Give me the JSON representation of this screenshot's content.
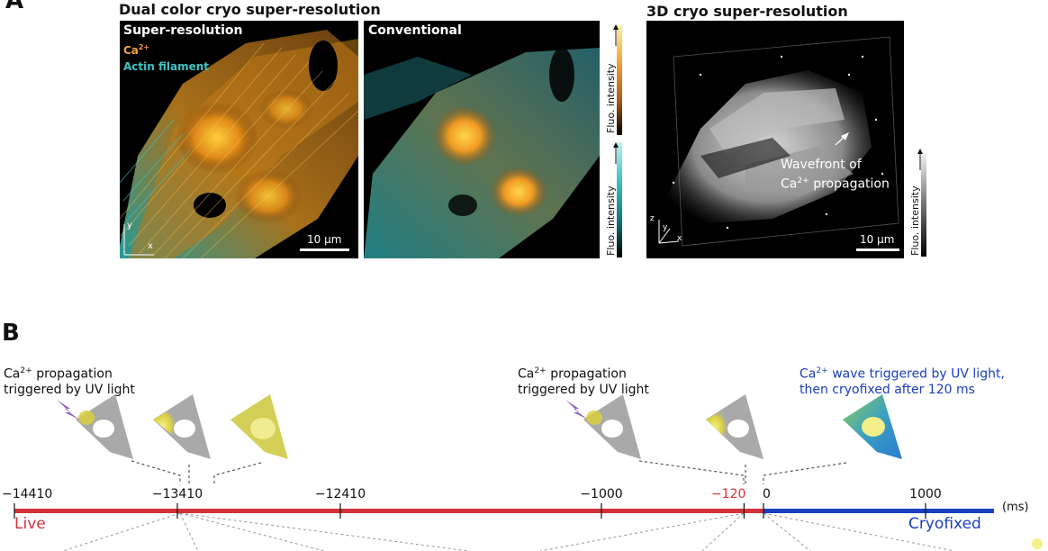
{
  "panel_a": {
    "letter": "A",
    "dual_title": "Dual color cryo super-resolution",
    "sr_label": "Super-resolution",
    "legend_ca": "Ca",
    "legend_ca_sup": "2+",
    "legend_actin": "Actin filament",
    "conventional_label": "Conventional",
    "scale_left": "10 μm",
    "axis_y": "y",
    "axis_x": "x",
    "axis_z": "z",
    "cbar_orange": "Fluo. intensity",
    "cbar_cyan": "Fluo. intensity",
    "threed_title": "3D cryo super-resolution",
    "wavefront_line1": "Wavefront of",
    "wavefront_ca": "Ca",
    "wavefront_ca_sup": "2+",
    "wavefront_line2_rest": " propagation",
    "scale_3d": "10 μm",
    "cbar_gray": "Fluo. intensity",
    "colors": {
      "orange": "#f2a23a",
      "cyan": "#3fc3c2"
    }
  },
  "panel_b": {
    "letter": "B",
    "annot_left_ca": "Ca",
    "annot_left_sup": "2+",
    "annot_left_l1_rest": " propagation",
    "annot_left_l2": "triggered by UV light",
    "annot_mid_ca": "Ca",
    "annot_mid_sup": "2+",
    "annot_mid_l1_rest": " propagation",
    "annot_mid_l2": "triggered by UV light",
    "annot_right_ca": "Ca",
    "annot_right_sup": "2+",
    "annot_right_l1_rest": " wave triggered by UV light,",
    "annot_right_l2": "then cryofixed after 120 ms",
    "ticks": [
      {
        "label": "−14410",
        "value": -14410
      },
      {
        "label": "−13410",
        "value": -13410
      },
      {
        "label": "−12410",
        "value": -12410
      },
      {
        "label": "−1000",
        "value": -1000
      },
      {
        "label": "−120",
        "value": -120
      },
      {
        "label": "0",
        "value": 0
      },
      {
        "label": "1000",
        "value": 1000
      }
    ],
    "unit": "(ms)",
    "live_label": "Live",
    "cryofixed_label": "Cryofixed",
    "colors": {
      "live": "#d2323a",
      "cryo": "#1a3fbf"
    }
  }
}
